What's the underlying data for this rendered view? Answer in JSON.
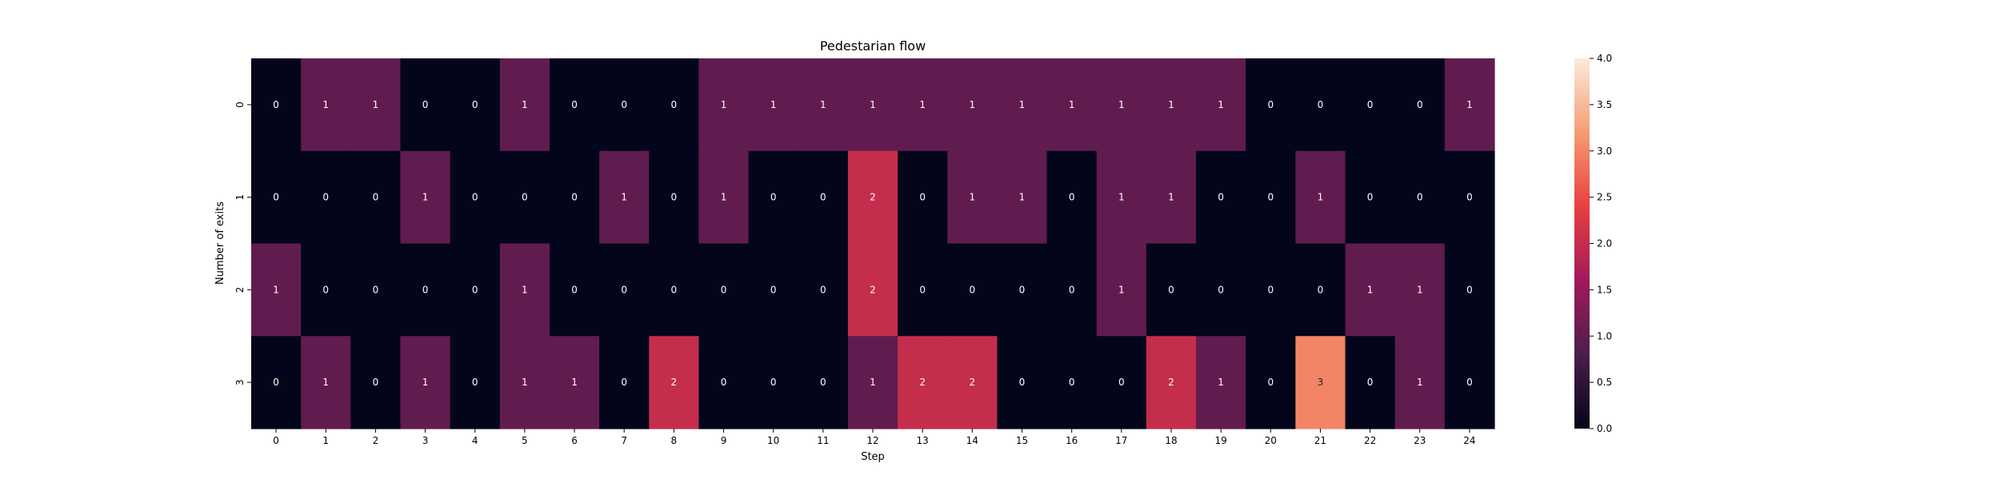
{
  "chart_data": {
    "type": "heatmap",
    "title": "Pedestarian flow",
    "xlabel": "Step",
    "ylabel": "Number of exits",
    "x_categories": [
      "0",
      "1",
      "2",
      "3",
      "4",
      "5",
      "6",
      "7",
      "8",
      "9",
      "10",
      "11",
      "12",
      "13",
      "14",
      "15",
      "16",
      "17",
      "18",
      "19",
      "20",
      "21",
      "22",
      "23",
      "24"
    ],
    "y_categories": [
      "0",
      "1",
      "2",
      "3"
    ],
    "values": [
      [
        0,
        1,
        1,
        0,
        0,
        1,
        0,
        0,
        0,
        1,
        1,
        1,
        1,
        1,
        1,
        1,
        1,
        1,
        1,
        1,
        0,
        0,
        0,
        0,
        1
      ],
      [
        0,
        0,
        0,
        1,
        0,
        0,
        0,
        1,
        0,
        1,
        0,
        0,
        2,
        0,
        1,
        1,
        0,
        1,
        1,
        0,
        0,
        1,
        0,
        0,
        0
      ],
      [
        1,
        0,
        0,
        0,
        0,
        1,
        0,
        0,
        0,
        0,
        0,
        0,
        2,
        0,
        0,
        0,
        0,
        1,
        0,
        0,
        0,
        0,
        1,
        1,
        0
      ],
      [
        0,
        1,
        0,
        1,
        0,
        1,
        1,
        0,
        2,
        0,
        0,
        0,
        1,
        2,
        2,
        0,
        0,
        0,
        2,
        1,
        0,
        3,
        0,
        1,
        0
      ]
    ],
    "colorbar": {
      "min": 0,
      "max": 4,
      "ticks": [
        "0.0",
        "0.5",
        "1.0",
        "1.5",
        "2.0",
        "2.5",
        "3.0",
        "3.5",
        "4.0"
      ],
      "colormap": "rocket",
      "color_stops": [
        "#03051a",
        "#4c1d4b",
        "#a11a5b",
        "#e83f3f",
        "#f69c73",
        "#faebdd"
      ]
    },
    "annotation_colors": {
      "dark_cells": "#ffffff",
      "light_cells": "#262626"
    }
  }
}
